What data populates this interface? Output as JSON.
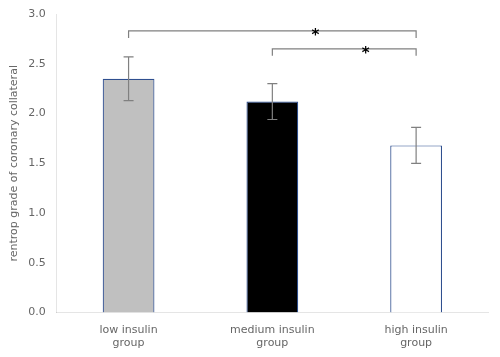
{
  "chart_data": {
    "type": "bar",
    "categories": [
      "low insulin\ngroup",
      "medium insulin\ngroup",
      "high insulin\ngroup"
    ],
    "values": [
      2.35,
      2.12,
      1.68
    ],
    "errors": [
      0.22,
      0.18,
      0.18
    ],
    "colors": [
      "#c0c0c0",
      "#000000",
      "#ffffff"
    ],
    "ylabel": "rentrop grade of coronary collateral",
    "ylim": [
      0,
      3
    ],
    "yticks": [
      {
        "value": 0,
        "label": "0.0"
      },
      {
        "value": 0.5,
        "label": "0.5"
      },
      {
        "value": 1,
        "label": "1.0"
      },
      {
        "value": 1.5,
        "label": "1.5"
      },
      {
        "value": 2,
        "label": "2.0"
      },
      {
        "value": 2.5,
        "label": "2.5"
      },
      {
        "value": 3,
        "label": "3.0"
      }
    ],
    "grid": false,
    "annotations": [
      {
        "from": "low insulin\ngroup",
        "to": "high insulin\ngroup",
        "y": 2.83,
        "label": "*"
      },
      {
        "from": "medium insulin\ngroup",
        "to": "high insulin\ngroup",
        "y": 2.65,
        "label": "*"
      }
    ]
  }
}
